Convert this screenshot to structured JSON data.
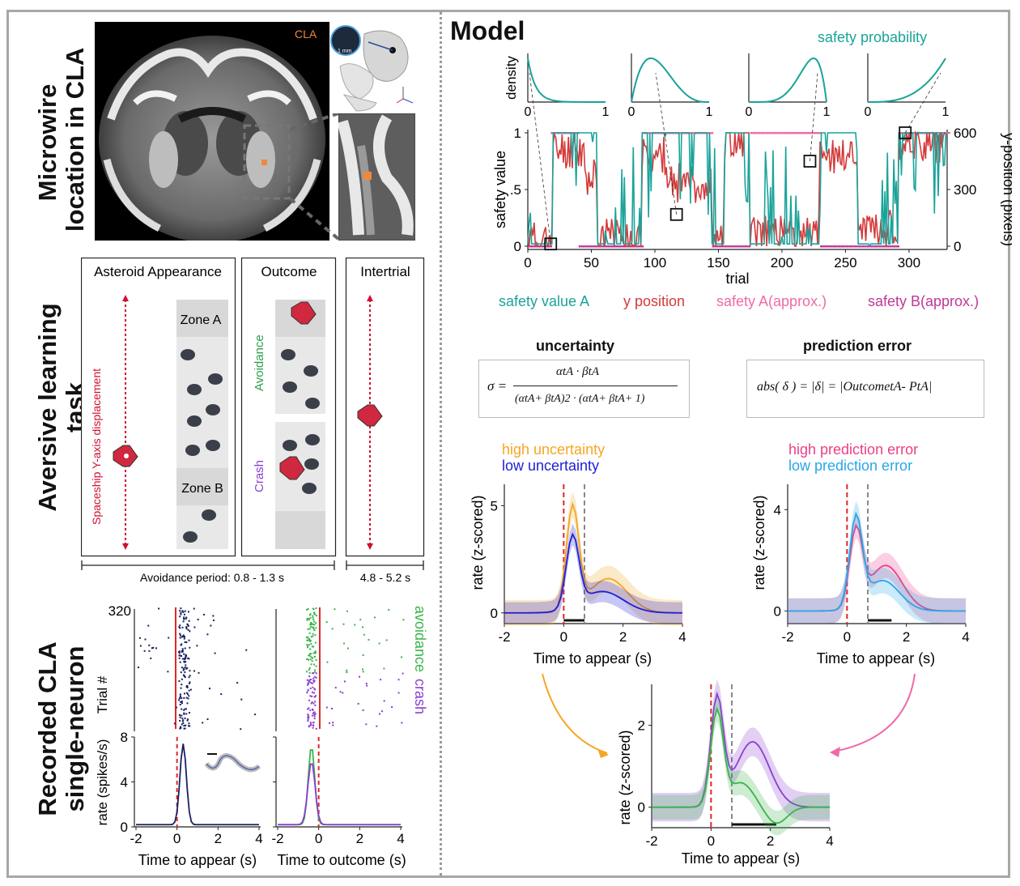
{
  "sections": {
    "microwire": {
      "line1": "Microwire",
      "line2": "location in CLA"
    },
    "task": {
      "line1": "Aversive learning",
      "line2": "task"
    },
    "recorded": {
      "line1": "Recorded CLA",
      "line2": "single-neuron"
    }
  },
  "brain": {
    "cla_label": "CLA",
    "scale_label": "1 mm"
  },
  "task_panels": {
    "asteroid_title": "Asteroid Appearance",
    "outcome_title": "Outcome",
    "intertrial_title": "Intertrial",
    "yaxis_label": "Spaceship Y-axis displacement",
    "zone_a": "Zone A",
    "zone_b": "Zone B",
    "avoidance": "Avoidance",
    "crash": "Crash",
    "avoidance_period": "Avoidance period: 0.8 - 1.3 s",
    "intertrial_period": "4.8 - 5.2 s"
  },
  "raster": {
    "ytop": "320",
    "ylabel": "Trial #",
    "legend_avoidance": "avoidance",
    "legend_crash": "crash",
    "rate_ylabel": "rate (spikes/s)",
    "xlabel_left": "Time to appear (s)",
    "xlabel_right": "Time to outcome (s)",
    "yticks": [
      "0",
      "4",
      "8"
    ],
    "xticks": [
      "-2",
      "0",
      "2",
      "4"
    ]
  },
  "model": {
    "title": "Model",
    "safety_probability": "safety probability",
    "density_label": "density",
    "density_ticks": [
      "0",
      "1"
    ],
    "left_ylabel": "safety value",
    "right_ylabel": "y-position (pixels)",
    "xlabel": "trial",
    "left_yticks": [
      "0",
      ".5",
      "1"
    ],
    "right_yticks": [
      "0",
      "300",
      "600"
    ],
    "xticks": [
      "0",
      "50",
      "100",
      "150",
      "200",
      "250",
      "300"
    ],
    "legend": {
      "safety_value_a": "safety value A",
      "y_position": "y position",
      "safety_a_approx": "safety A(approx.)",
      "safety_b_approx": "safety B(approx.)"
    }
  },
  "equations": {
    "uncertainty_title": "uncertainty",
    "pe_title": "prediction error",
    "sigma": "σ =",
    "numerator": "αtA · βtA",
    "denominator": "(αtA+ βtA)2 · (αtA+ βtA+ 1)",
    "pe_equation": "abs( δ ) = |δ| = |OutcometA- PtA|"
  },
  "zplots": {
    "ylabel": "rate (z-scored)",
    "xlabel": "Time to appear (s)",
    "xticks": [
      "-2",
      "0",
      "2",
      "4"
    ],
    "unc_legend_high": "high uncertainty",
    "unc_legend_low": "low uncertainty",
    "unc_yticks": [
      "0",
      "5"
    ],
    "pe_legend_high": "high prediction error",
    "pe_legend_low": "low prediction error",
    "pe_yticks": [
      "0",
      "4"
    ],
    "bottom_yticks": [
      "0",
      "2"
    ]
  },
  "colors": {
    "teal": "#1aa39a",
    "red": "#d43a3a",
    "pink": "#ef6aa8",
    "magenta": "#c0379a",
    "orange": "#f5a623",
    "blue": "#1f1fd6",
    "hot_pink": "#ec3f86",
    "sky": "#2aa7e8",
    "green": "#39b54a",
    "purple": "#8a3fd1",
    "navy": "#1b1f5e"
  }
}
